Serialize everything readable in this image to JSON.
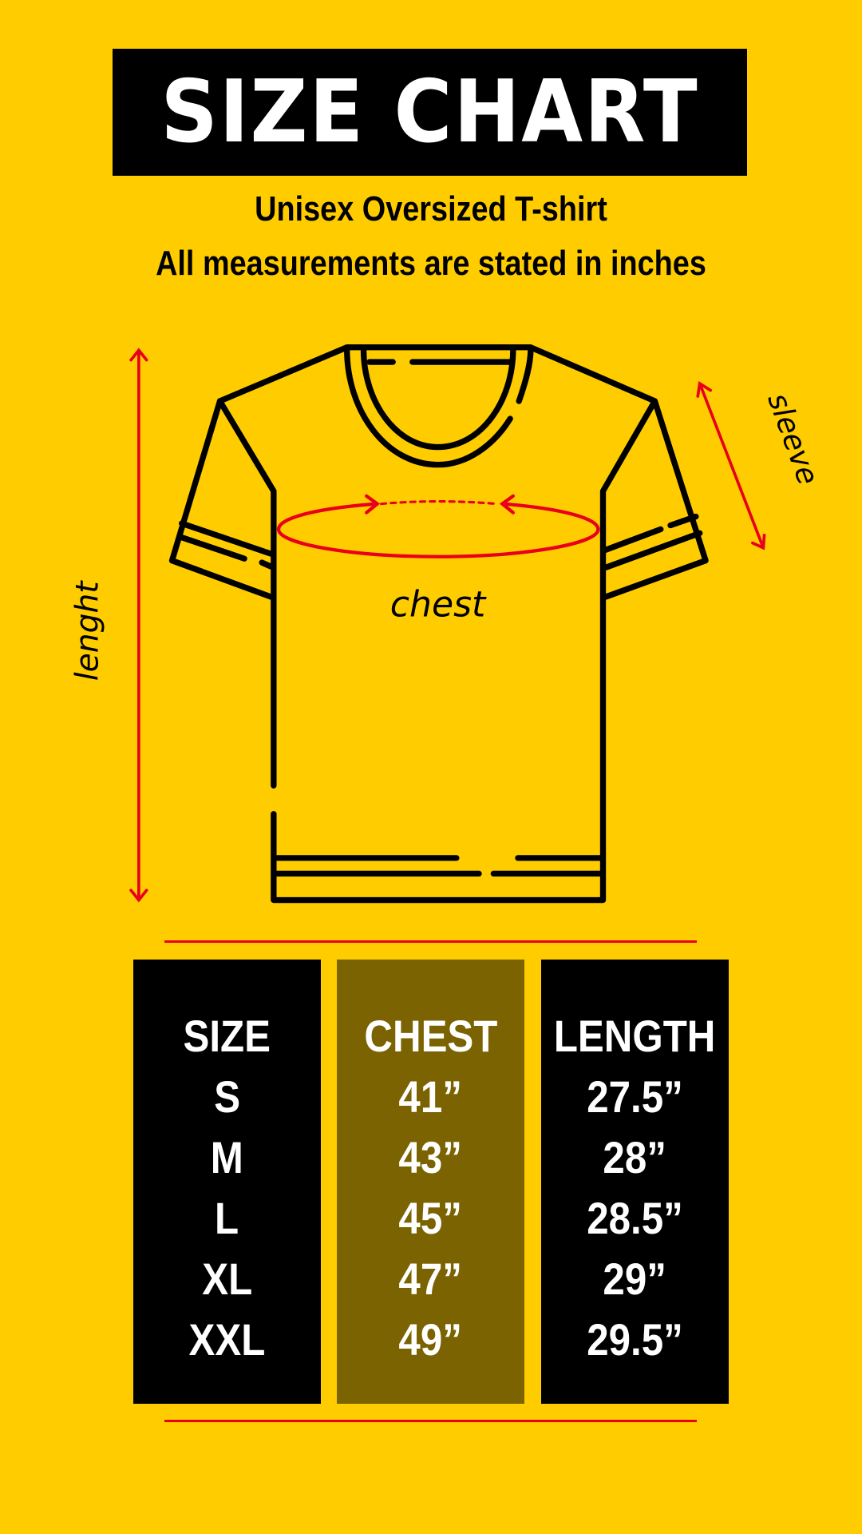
{
  "header": {
    "title": "SIZE CHART",
    "subtitle_line1": "Unisex Oversized T-shirt",
    "subtitle_line2": "All measurements are stated in inches"
  },
  "diagram": {
    "chest_label": "chest",
    "length_label": "lenght",
    "sleeve_label": "sleeve"
  },
  "colors": {
    "background": "#FFCC00",
    "accent": "#E8001C",
    "chest_column": "#7A6300"
  },
  "table": {
    "columns": [
      {
        "header": "SIZE",
        "values": [
          "S",
          "M",
          "L",
          "XL",
          "XXL"
        ]
      },
      {
        "header": "CHEST",
        "values": [
          "41”",
          "43”",
          "45”",
          "47”",
          "49”"
        ]
      },
      {
        "header": "LENGTH",
        "values": [
          "27.5”",
          "28”",
          "28.5”",
          "29”",
          "29.5”"
        ]
      }
    ]
  }
}
